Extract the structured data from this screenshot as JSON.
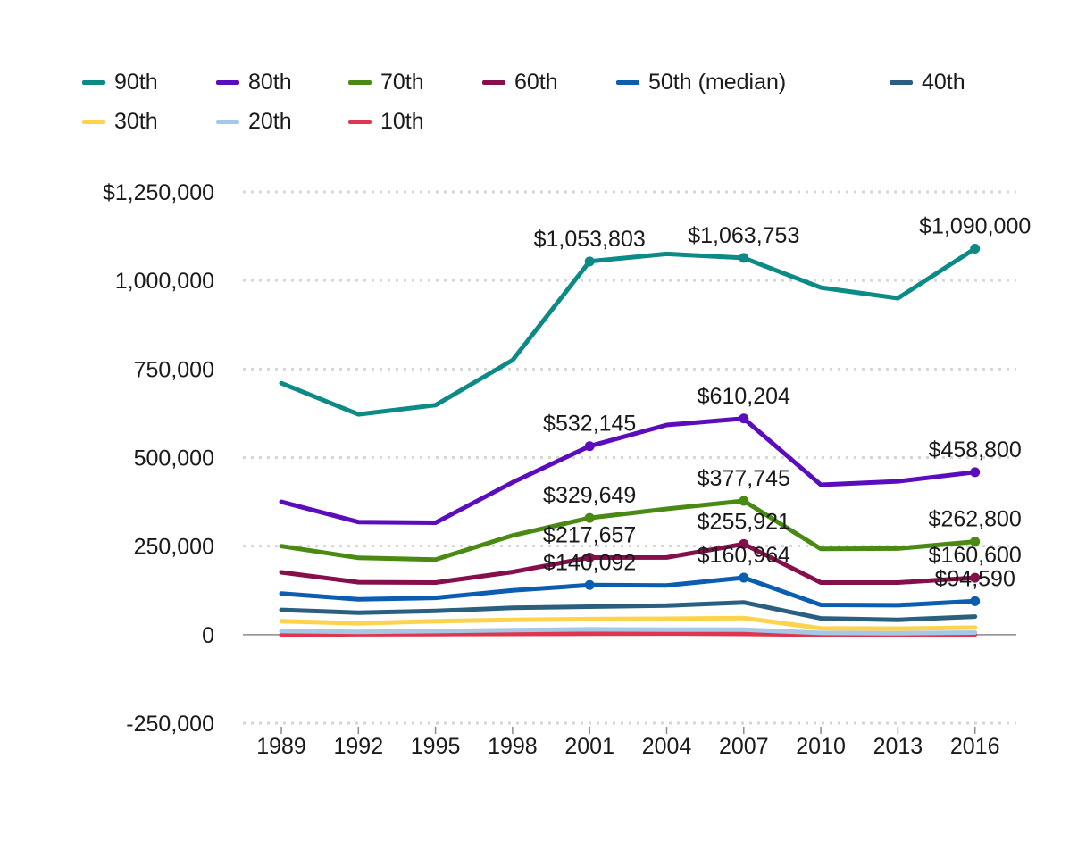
{
  "chart_data": {
    "type": "line",
    "title": "",
    "xlabel": "",
    "ylabel": "",
    "x": [
      "1989",
      "1992",
      "1995",
      "1998",
      "2001",
      "2004",
      "2007",
      "2010",
      "2013",
      "2016"
    ],
    "ylim": [
      -250000,
      1250000
    ],
    "yticks": [
      {
        "value": 1250000,
        "label": "$1,250,000"
      },
      {
        "value": 1000000,
        "label": "1,000,000"
      },
      {
        "value": 750000,
        "label": "750,000"
      },
      {
        "value": 500000,
        "label": "500,000"
      },
      {
        "value": 250000,
        "label": "250,000"
      },
      {
        "value": 0,
        "label": "0"
      },
      {
        "value": -250000,
        "label": "-250,000"
      }
    ],
    "grid": true,
    "legend_position": "top",
    "series": [
      {
        "name": "90th",
        "color": "#0b8a86",
        "values": [
          710000,
          622000,
          648000,
          775000,
          1053803,
          1075000,
          1063753,
          980000,
          950000,
          1090000
        ],
        "markers": [
          4,
          6,
          9
        ],
        "labels": [
          {
            "index": 4,
            "text": "$1,053,803"
          },
          {
            "index": 6,
            "text": "$1,063,753"
          },
          {
            "index": 9,
            "text": "$1,090,000"
          }
        ]
      },
      {
        "name": "80th",
        "color": "#5b0dbd",
        "values": [
          375000,
          318000,
          316000,
          430000,
          532145,
          592000,
          610204,
          423000,
          433000,
          458800
        ],
        "markers": [
          4,
          6,
          9
        ],
        "labels": [
          {
            "index": 4,
            "text": "$532,145"
          },
          {
            "index": 6,
            "text": "$610,204"
          },
          {
            "index": 9,
            "text": "$458,800"
          }
        ]
      },
      {
        "name": "70th",
        "color": "#4a8a14",
        "values": [
          250000,
          217000,
          212000,
          280000,
          329649,
          355000,
          377745,
          242000,
          243000,
          262800
        ],
        "markers": [
          4,
          6,
          9
        ],
        "labels": [
          {
            "index": 4,
            "text": "$329,649"
          },
          {
            "index": 6,
            "text": "$377,745"
          },
          {
            "index": 9,
            "text": "$262,800"
          }
        ]
      },
      {
        "name": "60th",
        "color": "#860e4a",
        "values": [
          176000,
          148000,
          147000,
          177000,
          217657,
          218000,
          255921,
          147000,
          147000,
          160600
        ],
        "markers": [
          4,
          6,
          9
        ],
        "labels": [
          {
            "index": 4,
            "text": "$217,657"
          },
          {
            "index": 6,
            "text": "$255,921"
          },
          {
            "index": 9,
            "text": "$160,600"
          }
        ]
      },
      {
        "name": "50th (median)",
        "color": "#0b5db0",
        "values": [
          116000,
          100000,
          104000,
          125000,
          140092,
          139000,
          160964,
          84000,
          83000,
          94590
        ],
        "markers": [
          4,
          6,
          9
        ],
        "labels": [
          {
            "index": 4,
            "text": "$140,092"
          },
          {
            "index": 6,
            "text": "$160,964"
          },
          {
            "index": 9,
            "text": "$94,590"
          }
        ]
      },
      {
        "name": "40th",
        "color": "#2a5f80",
        "values": [
          70000,
          62000,
          67000,
          76000,
          79000,
          82000,
          91000,
          46000,
          42000,
          51000
        ],
        "markers": [],
        "labels": []
      },
      {
        "name": "30th",
        "color": "#fdd34d",
        "values": [
          38000,
          32000,
          38000,
          42000,
          44000,
          45000,
          47000,
          18000,
          17000,
          20000
        ],
        "markers": [],
        "labels": []
      },
      {
        "name": "20th",
        "color": "#a6c8e6",
        "values": [
          10000,
          8000,
          10000,
          13000,
          15000,
          14000,
          14000,
          5000,
          4000,
          6000
        ],
        "markers": [],
        "labels": []
      },
      {
        "name": "10th",
        "color": "#e0364d",
        "values": [
          500,
          1000,
          1500,
          2000,
          2500,
          3000,
          2000,
          -500,
          -1000,
          0
        ],
        "markers": [],
        "labels": []
      }
    ]
  }
}
